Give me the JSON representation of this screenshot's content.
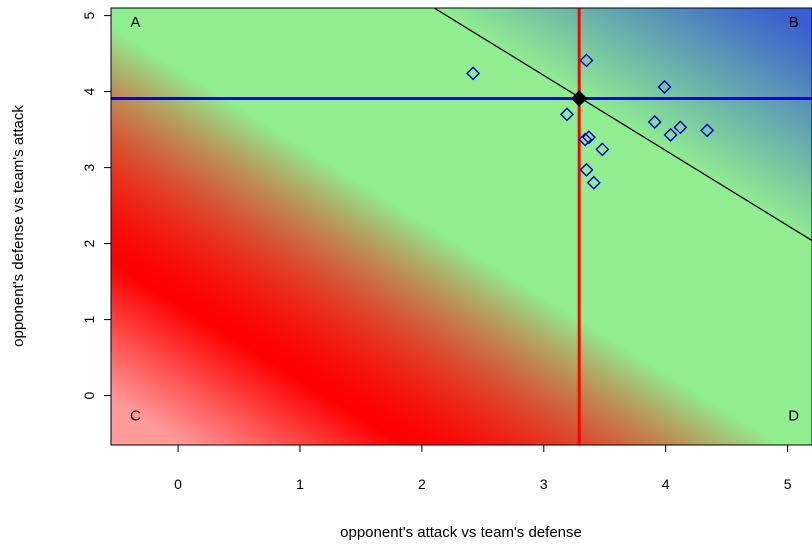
{
  "chart_data": {
    "type": "scatter",
    "xlabel": "opponent's attack vs team's defense",
    "ylabel": "opponent's defense vs team's attack",
    "xlim": [
      -0.55,
      5.2
    ],
    "ylim": [
      -0.65,
      5.1
    ],
    "x_ticks": [
      0,
      1,
      2,
      3,
      4,
      5
    ],
    "y_ticks": [
      0,
      1,
      2,
      3,
      4,
      5
    ],
    "gradient": {
      "low_color": "#ff0000",
      "mid_color": "#90ee90",
      "high_color": "#3a5fd0",
      "origin_color": "#ff9a9a",
      "background_x_start": -0.55
    },
    "points": {
      "marker": "diamond-open",
      "color": "#0000cc",
      "x": [
        2.42,
        3.35,
        3.99,
        3.19,
        3.91,
        4.12,
        4.04,
        4.34,
        3.34,
        3.37,
        3.48,
        3.35,
        3.41
      ],
      "y": [
        4.24,
        4.41,
        4.06,
        3.7,
        3.6,
        3.53,
        3.43,
        3.49,
        3.37,
        3.4,
        3.24,
        2.97,
        2.8
      ]
    },
    "highlight_point": {
      "x": 3.29,
      "y": 3.91,
      "color": "#000000"
    },
    "vertical_line": {
      "x": 3.29,
      "color": "#ff0000"
    },
    "horizontal_line": {
      "y": 3.91,
      "color": "#0000ff"
    },
    "diagonal_line": {
      "x1": 2.0,
      "y1": 5.2,
      "x2": 5.2,
      "y2": 2.04,
      "color": "#000000"
    },
    "corner_labels": [
      {
        "id": "A",
        "text": "A",
        "x": -0.35,
        "y": 4.85
      },
      {
        "id": "B",
        "text": "B",
        "x": 5.05,
        "y": 4.85
      },
      {
        "id": "C",
        "text": "C",
        "x": -0.35,
        "y": -0.33
      },
      {
        "id": "D",
        "text": "D",
        "x": 5.05,
        "y": -0.33
      }
    ]
  }
}
